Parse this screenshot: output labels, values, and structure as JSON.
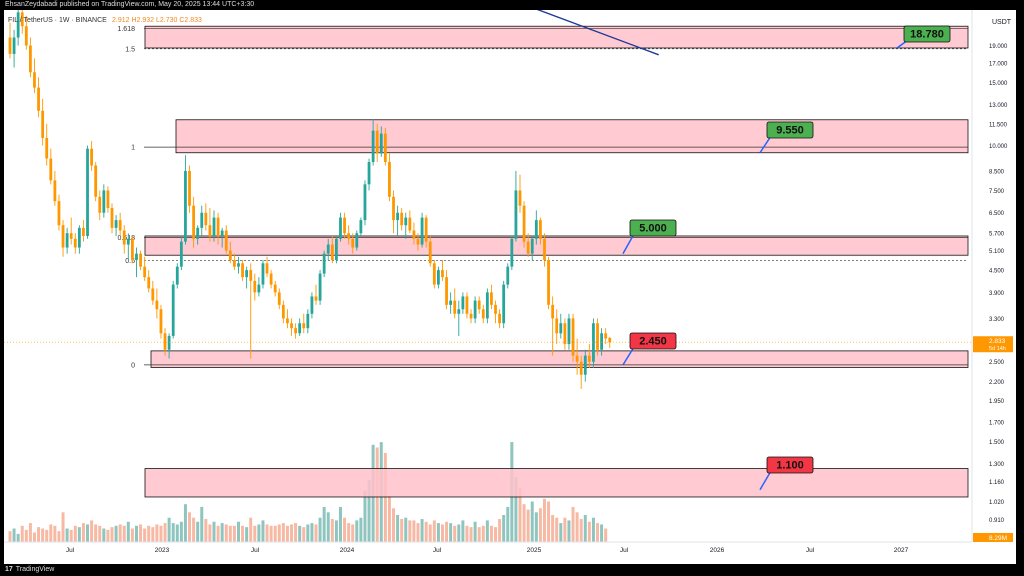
{
  "header": {
    "publisher": "EhsanZeydabadi published on TradingView.com, May 20, 2025 13:44 UTC+3:30"
  },
  "symbol_line": {
    "text": "FIL / TetherUS · 1W · BINANCE",
    "ohlc": "2.912  H2.932  L2.730  C2.833"
  },
  "footer": {
    "logo_mark": "17",
    "logo_text": "TradingView"
  },
  "colors": {
    "up": "#26a69a",
    "down": "#ff9800",
    "zone_fill": "#ffc1c9",
    "green_label": "#4caf50",
    "red_label": "#f23645",
    "trendline": "#1e3a9a",
    "price_tag": "#ff9800"
  },
  "chart_data": {
    "type": "candlestick",
    "price_axis": {
      "unit": "USDT",
      "scale": "log",
      "ticks": [
        "19.000",
        "17.000",
        "15.000",
        "13.000",
        "11.500",
        "10.000",
        "8.500",
        "7.500",
        "6.500",
        "5.700",
        "5.100",
        "4.500",
        "3.900",
        "3.300",
        "2.900",
        "2.500",
        "2.200",
        "1.950",
        "1.700",
        "1.500",
        "1.300",
        "1.160",
        "1.020",
        "0.910",
        "0.810"
      ],
      "current_price": "2.833",
      "current_countdown": "5d 14h",
      "volume_label": "8.29M"
    },
    "time_axis": {
      "labels": [
        "Jul",
        "2023",
        "Jul",
        "2024",
        "Jul",
        "2025",
        "Jul",
        "2026",
        "Jul",
        "2027"
      ]
    },
    "fib_levels": [
      {
        "label": "1.618",
        "price": 21.2
      },
      {
        "label": "1.5",
        "price": 18.6
      },
      {
        "label": "1",
        "price": 9.9
      },
      {
        "label": "0.618",
        "price": 5.55
      },
      {
        "label": "0.5",
        "price": 4.78
      },
      {
        "label": "0",
        "price": 2.45
      }
    ],
    "zones": [
      {
        "top": 21.5,
        "bottom": 18.7
      },
      {
        "top": 11.8,
        "bottom": 9.55
      },
      {
        "top": 5.6,
        "bottom": 4.95
      },
      {
        "top": 2.68,
        "bottom": 2.41
      },
      {
        "top": 1.26,
        "bottom": 1.05
      }
    ],
    "targets": [
      {
        "text": "18.780",
        "price": 18.78,
        "kind": "green"
      },
      {
        "text": "9.550",
        "price": 9.55,
        "kind": "green"
      },
      {
        "text": "5.000",
        "price": 5.0,
        "kind": "green"
      },
      {
        "text": "2.450",
        "price": 2.45,
        "kind": "red"
      },
      {
        "text": "1.100",
        "price": 1.1,
        "kind": "red"
      }
    ],
    "trendline": {
      "from": {
        "week": 129,
        "price": 24.0
      },
      "to": {
        "week": 159,
        "price": 17.9
      }
    },
    "candles": [
      [
        20.0,
        22.0,
        17.5,
        18.0
      ],
      [
        18.0,
        21.0,
        16.5,
        20.0
      ],
      [
        20.0,
        25.0,
        19.0,
        23.5
      ],
      [
        23.5,
        25.5,
        20.5,
        21.5
      ],
      [
        21.5,
        23.0,
        18.5,
        19.0
      ],
      [
        19.0,
        20.0,
        15.5,
        16.0
      ],
      [
        16.0,
        17.5,
        14.0,
        14.5
      ],
      [
        14.5,
        15.5,
        12.0,
        12.5
      ],
      [
        12.5,
        13.5,
        10.0,
        10.5
      ],
      [
        10.5,
        11.5,
        8.8,
        9.2
      ],
      [
        9.2,
        9.8,
        7.8,
        8.0
      ],
      [
        8.0,
        8.5,
        6.8,
        7.0
      ],
      [
        7.0,
        7.3,
        5.8,
        6.0
      ],
      [
        6.0,
        6.2,
        4.9,
        5.2
      ],
      [
        5.2,
        5.9,
        5.0,
        5.7
      ],
      [
        5.7,
        6.3,
        5.3,
        5.5
      ],
      [
        5.5,
        5.7,
        5.0,
        5.2
      ],
      [
        5.2,
        6.0,
        5.0,
        5.9
      ],
      [
        5.9,
        6.2,
        5.4,
        5.6
      ],
      [
        5.6,
        10.0,
        5.5,
        9.8
      ],
      [
        9.8,
        10.3,
        8.5,
        8.8
      ],
      [
        8.8,
        9.0,
        7.0,
        7.2
      ],
      [
        7.2,
        7.5,
        6.2,
        6.5
      ],
      [
        6.5,
        7.8,
        6.3,
        7.5
      ],
      [
        7.5,
        7.7,
        6.5,
        6.7
      ],
      [
        6.7,
        6.9,
        5.7,
        5.9
      ],
      [
        5.9,
        6.4,
        5.6,
        6.2
      ],
      [
        6.2,
        6.5,
        5.6,
        5.8
      ],
      [
        5.8,
        6.0,
        5.0,
        5.3
      ],
      [
        5.3,
        5.7,
        4.8,
        5.5
      ],
      [
        5.5,
        5.6,
        4.7,
        4.8
      ],
      [
        4.8,
        5.2,
        4.3,
        5.0
      ],
      [
        5.0,
        5.1,
        4.5,
        4.6
      ],
      [
        4.6,
        4.9,
        4.2,
        4.3
      ],
      [
        4.3,
        4.5,
        3.9,
        4.0
      ],
      [
        4.0,
        4.2,
        3.6,
        3.7
      ],
      [
        3.7,
        4.0,
        3.3,
        3.5
      ],
      [
        3.5,
        3.6,
        2.9,
        3.0
      ],
      [
        3.0,
        3.1,
        2.6,
        2.7
      ],
      [
        2.7,
        3.0,
        2.55,
        2.95
      ],
      [
        2.95,
        4.2,
        2.9,
        4.1
      ],
      [
        4.1,
        4.7,
        4.0,
        4.6
      ],
      [
        4.6,
        5.6,
        4.5,
        5.4
      ],
      [
        5.4,
        9.4,
        5.3,
        8.5
      ],
      [
        8.5,
        8.8,
        6.5,
        6.8
      ],
      [
        6.8,
        7.2,
        5.2,
        5.5
      ],
      [
        5.5,
        6.0,
        5.3,
        5.9
      ],
      [
        5.9,
        6.8,
        5.6,
        6.5
      ],
      [
        6.5,
        6.9,
        5.8,
        6.0
      ],
      [
        6.0,
        6.7,
        5.4,
        5.6
      ],
      [
        5.6,
        6.6,
        5.4,
        6.3
      ],
      [
        6.3,
        6.5,
        5.3,
        5.6
      ],
      [
        5.6,
        5.9,
        5.2,
        5.8
      ],
      [
        5.8,
        6.0,
        5.0,
        5.1
      ],
      [
        5.1,
        5.4,
        4.7,
        4.8
      ],
      [
        4.8,
        5.0,
        4.5,
        4.6
      ],
      [
        4.6,
        4.9,
        4.4,
        4.7
      ],
      [
        4.7,
        4.8,
        4.2,
        4.3
      ],
      [
        4.3,
        4.6,
        4.0,
        4.5
      ],
      [
        4.5,
        4.7,
        2.55,
        4.2
      ],
      [
        4.2,
        4.4,
        3.7,
        3.9
      ],
      [
        3.9,
        4.3,
        3.8,
        4.1
      ],
      [
        4.1,
        4.8,
        4.0,
        4.7
      ],
      [
        4.7,
        4.9,
        4.3,
        4.4
      ],
      [
        4.4,
        4.5,
        4.0,
        4.1
      ],
      [
        4.1,
        4.2,
        3.8,
        3.9
      ],
      [
        3.9,
        4.0,
        3.5,
        3.6
      ],
      [
        3.6,
        3.7,
        3.2,
        3.3
      ],
      [
        3.3,
        3.5,
        3.1,
        3.2
      ],
      [
        3.2,
        3.3,
        2.95,
        3.1
      ],
      [
        3.1,
        3.2,
        2.9,
        3.0
      ],
      [
        3.0,
        3.3,
        2.95,
        3.2
      ],
      [
        3.2,
        3.4,
        3.0,
        3.1
      ],
      [
        3.1,
        3.5,
        3.0,
        3.4
      ],
      [
        3.4,
        3.9,
        3.3,
        3.8
      ],
      [
        3.8,
        4.1,
        3.6,
        3.7
      ],
      [
        3.7,
        4.5,
        3.6,
        4.4
      ],
      [
        4.4,
        5.1,
        4.3,
        5.0
      ],
      [
        5.0,
        5.5,
        4.8,
        5.3
      ],
      [
        5.3,
        5.6,
        4.7,
        4.8
      ],
      [
        4.8,
        5.6,
        4.7,
        5.5
      ],
      [
        5.5,
        6.5,
        5.4,
        6.3
      ],
      [
        6.3,
        6.5,
        5.5,
        5.7
      ],
      [
        5.7,
        6.0,
        5.3,
        5.5
      ],
      [
        5.5,
        5.7,
        5.0,
        5.2
      ],
      [
        5.2,
        5.8,
        5.1,
        5.7
      ],
      [
        5.7,
        6.3,
        5.6,
        6.2
      ],
      [
        6.2,
        8.0,
        6.0,
        7.8
      ],
      [
        7.8,
        9.2,
        7.5,
        9.0
      ],
      [
        9.0,
        11.8,
        8.8,
        11.0
      ],
      [
        11.0,
        11.5,
        9.0,
        9.5
      ],
      [
        9.5,
        11.3,
        9.3,
        10.8
      ],
      [
        10.8,
        11.2,
        8.8,
        9.0
      ],
      [
        9.0,
        9.5,
        7.0,
        7.2
      ],
      [
        7.2,
        7.5,
        5.7,
        6.2
      ],
      [
        6.2,
        6.8,
        5.6,
        6.5
      ],
      [
        6.5,
        6.7,
        5.8,
        6.0
      ],
      [
        6.0,
        6.5,
        5.5,
        6.3
      ],
      [
        6.3,
        6.6,
        5.7,
        5.8
      ],
      [
        5.8,
        6.1,
        5.3,
        5.5
      ],
      [
        5.5,
        5.7,
        5.1,
        5.3
      ],
      [
        5.3,
        6.5,
        5.2,
        6.3
      ],
      [
        6.3,
        6.4,
        5.2,
        5.4
      ],
      [
        5.4,
        5.6,
        4.6,
        4.7
      ],
      [
        4.7,
        4.8,
        4.0,
        4.1
      ],
      [
        4.1,
        4.6,
        4.0,
        4.5
      ],
      [
        4.5,
        4.8,
        4.2,
        4.3
      ],
      [
        4.3,
        4.5,
        3.5,
        3.6
      ],
      [
        3.6,
        3.9,
        3.4,
        3.7
      ],
      [
        3.7,
        4.0,
        3.3,
        3.4
      ],
      [
        3.4,
        3.7,
        2.95,
        3.5
      ],
      [
        3.5,
        3.9,
        3.4,
        3.8
      ],
      [
        3.8,
        3.9,
        3.3,
        3.4
      ],
      [
        3.4,
        3.5,
        3.2,
        3.3
      ],
      [
        3.3,
        3.8,
        3.2,
        3.7
      ],
      [
        3.7,
        3.8,
        3.4,
        3.5
      ],
      [
        3.5,
        3.6,
        3.2,
        3.3
      ],
      [
        3.3,
        4.0,
        3.2,
        3.9
      ],
      [
        3.9,
        4.1,
        3.5,
        3.6
      ],
      [
        3.6,
        3.7,
        3.2,
        3.4
      ],
      [
        3.4,
        3.5,
        3.1,
        3.2
      ],
      [
        3.2,
        4.2,
        3.1,
        4.1
      ],
      [
        4.1,
        4.7,
        4.0,
        4.6
      ],
      [
        4.6,
        5.6,
        4.5,
        5.5
      ],
      [
        5.5,
        8.5,
        5.4,
        7.5
      ],
      [
        7.5,
        8.3,
        6.5,
        6.8
      ],
      [
        6.8,
        7.0,
        5.2,
        5.4
      ],
      [
        5.4,
        5.7,
        4.9,
        5.0
      ],
      [
        5.0,
        5.6,
        4.8,
        5.5
      ],
      [
        5.5,
        6.6,
        5.3,
        6.2
      ],
      [
        6.2,
        6.3,
        5.3,
        5.5
      ],
      [
        5.5,
        5.7,
        4.6,
        4.8
      ],
      [
        4.8,
        4.9,
        3.5,
        3.6
      ],
      [
        3.6,
        3.8,
        2.6,
        3.3
      ],
      [
        3.3,
        3.5,
        2.8,
        3.0
      ],
      [
        3.0,
        3.4,
        2.9,
        3.2
      ],
      [
        3.2,
        3.3,
        2.7,
        2.8
      ],
      [
        2.8,
        3.4,
        2.7,
        3.3
      ],
      [
        3.3,
        3.4,
        2.5,
        2.6
      ],
      [
        2.6,
        2.9,
        2.3,
        2.5
      ],
      [
        2.5,
        2.6,
        2.1,
        2.3
      ],
      [
        2.3,
        2.7,
        2.2,
        2.6
      ],
      [
        2.6,
        2.8,
        2.4,
        2.5
      ],
      [
        2.5,
        3.3,
        2.4,
        3.2
      ],
      [
        3.2,
        3.3,
        2.6,
        2.7
      ],
      [
        2.7,
        3.1,
        2.6,
        3.0
      ],
      [
        3.0,
        3.1,
        2.8,
        2.9
      ],
      [
        2.912,
        2.932,
        2.73,
        2.833
      ]
    ],
    "volumes": [
      0.08,
      0.1,
      0.06,
      0.12,
      0.09,
      0.14,
      0.07,
      0.11,
      0.1,
      0.09,
      0.13,
      0.12,
      0.08,
      0.22,
      0.1,
      0.09,
      0.12,
      0.11,
      0.14,
      0.13,
      0.16,
      0.13,
      0.12,
      0.1,
      0.09,
      0.11,
      0.12,
      0.13,
      0.12,
      0.15,
      0.1,
      0.12,
      0.13,
      0.1,
      0.12,
      0.11,
      0.13,
      0.12,
      0.14,
      0.18,
      0.14,
      0.13,
      0.15,
      0.28,
      0.22,
      0.18,
      0.15,
      0.26,
      0.17,
      0.13,
      0.15,
      0.12,
      0.14,
      0.13,
      0.12,
      0.12,
      0.15,
      0.12,
      0.11,
      0.18,
      0.12,
      0.13,
      0.16,
      0.13,
      0.12,
      0.12,
      0.13,
      0.14,
      0.12,
      0.13,
      0.14,
      0.12,
      0.11,
      0.13,
      0.14,
      0.13,
      0.18,
      0.26,
      0.22,
      0.17,
      0.16,
      0.26,
      0.18,
      0.14,
      0.13,
      0.16,
      0.18,
      0.38,
      0.46,
      0.72,
      0.7,
      0.74,
      0.66,
      0.34,
      0.25,
      0.2,
      0.17,
      0.18,
      0.16,
      0.16,
      0.14,
      0.17,
      0.15,
      0.13,
      0.16,
      0.14,
      0.13,
      0.15,
      0.14,
      0.12,
      0.13,
      0.16,
      0.12,
      0.11,
      0.15,
      0.11,
      0.12,
      0.16,
      0.12,
      0.11,
      0.17,
      0.2,
      0.26,
      0.74,
      0.48,
      0.4,
      0.28,
      0.24,
      0.3,
      0.22,
      0.25,
      0.32,
      0.3,
      0.2,
      0.18,
      0.14,
      0.18,
      0.16,
      0.26,
      0.22,
      0.17,
      0.2,
      0.15,
      0.18,
      0.14,
      0.13,
      0.1
    ]
  }
}
